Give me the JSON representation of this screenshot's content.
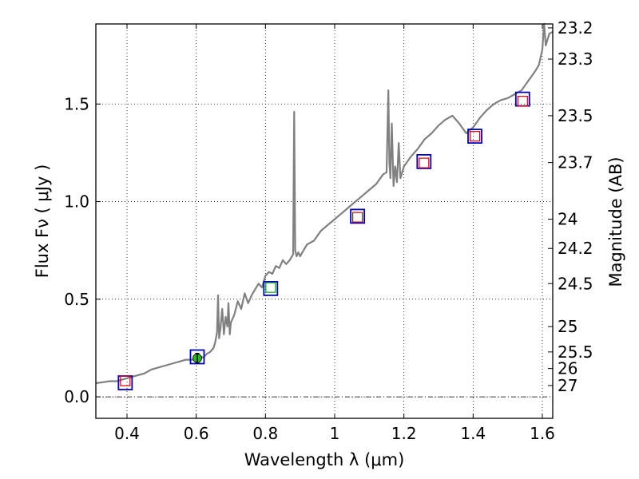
{
  "chart_data": {
    "type": "line",
    "title": "",
    "xlabel": "Wavelength  λ (μm)",
    "ylabel": "Flux  Fν  ( μJy )",
    "y2label": "Magnitude (AB)",
    "xlim": [
      0.31,
      1.63
    ],
    "ylim": [
      -0.11,
      1.91
    ],
    "grid": true,
    "x_ticks": [
      0.4,
      0.6,
      0.8,
      1.0,
      1.2,
      1.4,
      1.6
    ],
    "x_tick_labels": [
      "0.4",
      "0.6",
      "0.8",
      "1",
      "1.2",
      "1.4",
      "1.6"
    ],
    "y_ticks": [
      0.0,
      0.5,
      1.0,
      1.5
    ],
    "y_tick_labels": [
      "0.0",
      "0.5",
      "1.0",
      "1.5"
    ],
    "y2_ticks": [
      {
        "label": "23.2",
        "flux": 1.89
      },
      {
        "label": "23.3",
        "flux": 1.73
      },
      {
        "label": "23.5",
        "flux": 1.44
      },
      {
        "label": "23.7",
        "flux": 1.2
      },
      {
        "label": "24",
        "flux": 0.91
      },
      {
        "label": "24.2",
        "flux": 0.76
      },
      {
        "label": "24.5",
        "flux": 0.58
      },
      {
        "label": "25",
        "flux": 0.36
      },
      {
        "label": "25.5",
        "flux": 0.23
      },
      {
        "label": "26",
        "flux": 0.145
      },
      {
        "label": "27",
        "flux": 0.058
      }
    ],
    "reference_line": {
      "y": 0.0,
      "style": "dash-dot"
    },
    "colors": {
      "spectrum": "#808080",
      "model_box": "#0000cc",
      "obs_box_red": "#dd0000",
      "obs_box_green": "#00aa00",
      "obs_point": "#22bb22"
    },
    "series": [
      {
        "name": "spectrum",
        "x": [
          0.31,
          0.33,
          0.35,
          0.37,
          0.39,
          0.41,
          0.43,
          0.45,
          0.47,
          0.49,
          0.51,
          0.53,
          0.55,
          0.57,
          0.59,
          0.61,
          0.62,
          0.63,
          0.64,
          0.65,
          0.655,
          0.66,
          0.663,
          0.666,
          0.67,
          0.675,
          0.68,
          0.685,
          0.69,
          0.693,
          0.697,
          0.7,
          0.71,
          0.72,
          0.73,
          0.74,
          0.75,
          0.76,
          0.77,
          0.78,
          0.79,
          0.8,
          0.81,
          0.82,
          0.83,
          0.84,
          0.85,
          0.86,
          0.87,
          0.88,
          0.883,
          0.886,
          0.89,
          0.895,
          0.9,
          0.92,
          0.94,
          0.96,
          0.98,
          1.0,
          1.02,
          1.04,
          1.06,
          1.08,
          1.1,
          1.12,
          1.14,
          1.15,
          1.155,
          1.158,
          1.161,
          1.165,
          1.17,
          1.175,
          1.18,
          1.185,
          1.19,
          1.2,
          1.22,
          1.24,
          1.26,
          1.28,
          1.3,
          1.32,
          1.34,
          1.36,
          1.38,
          1.4,
          1.42,
          1.44,
          1.46,
          1.48,
          1.5,
          1.52,
          1.54,
          1.56,
          1.58,
          1.59,
          1.6,
          1.605,
          1.61,
          1.62,
          1.63
        ],
        "y": [
          0.07,
          0.075,
          0.08,
          0.08,
          0.09,
          0.1,
          0.11,
          0.12,
          0.14,
          0.15,
          0.16,
          0.17,
          0.18,
          0.19,
          0.19,
          0.21,
          0.2,
          0.22,
          0.23,
          0.25,
          0.28,
          0.33,
          0.52,
          0.3,
          0.35,
          0.45,
          0.32,
          0.41,
          0.36,
          0.48,
          0.32,
          0.38,
          0.42,
          0.49,
          0.45,
          0.53,
          0.48,
          0.52,
          0.55,
          0.58,
          0.56,
          0.62,
          0.64,
          0.63,
          0.67,
          0.66,
          0.7,
          0.68,
          0.7,
          0.73,
          1.46,
          0.75,
          0.72,
          0.74,
          0.72,
          0.78,
          0.8,
          0.85,
          0.88,
          0.91,
          0.94,
          0.97,
          1.0,
          1.03,
          1.06,
          1.09,
          1.14,
          1.15,
          1.57,
          1.2,
          1.12,
          1.4,
          1.08,
          1.18,
          1.1,
          1.3,
          1.12,
          1.18,
          1.23,
          1.27,
          1.32,
          1.35,
          1.39,
          1.42,
          1.44,
          1.4,
          1.35,
          1.38,
          1.43,
          1.47,
          1.5,
          1.52,
          1.53,
          1.55,
          1.57,
          1.62,
          1.67,
          1.7,
          1.78,
          1.96,
          1.8,
          1.86,
          1.87
        ]
      }
    ],
    "photometry": [
      {
        "x": 0.395,
        "model": 0.072,
        "obs": 0.082,
        "obs_color": "red"
      },
      {
        "x": 0.603,
        "model": 0.205,
        "obs": 0.198,
        "obs_color": "green",
        "err": 0.025,
        "filled": true
      },
      {
        "x": 0.815,
        "model": 0.555,
        "obs": 0.56,
        "obs_color": "green"
      },
      {
        "x": 1.066,
        "model": 0.925,
        "obs": 0.92,
        "obs_color": "red"
      },
      {
        "x": 1.258,
        "model": 1.205,
        "obs": 1.198,
        "obs_color": "red"
      },
      {
        "x": 1.405,
        "model": 1.335,
        "obs": 1.335,
        "obs_color": "red"
      },
      {
        "x": 1.543,
        "model": 1.525,
        "obs": 1.515,
        "obs_color": "red"
      }
    ]
  }
}
